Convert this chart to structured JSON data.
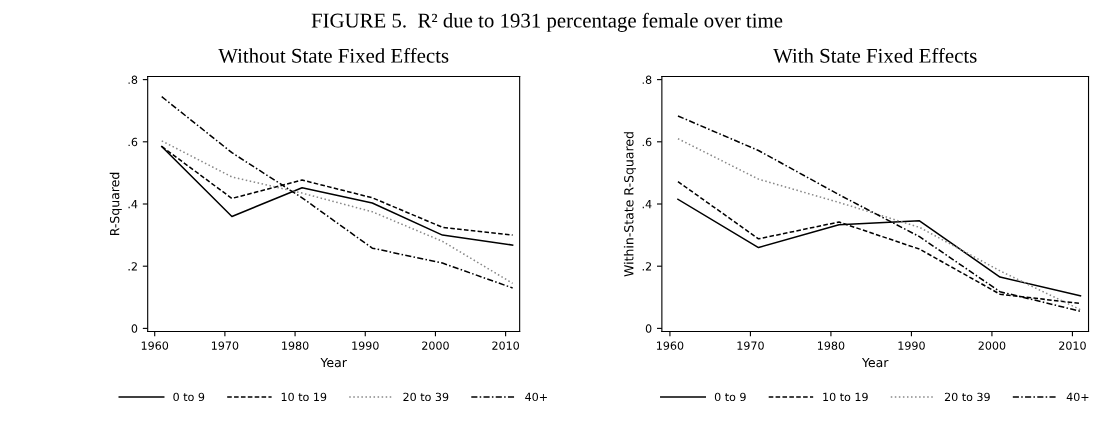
{
  "chart_data": [
    {
      "type": "line",
      "title": "Without State Fixed Effects",
      "annotations": [
        "FIGURE 5.  R² due to 1931 percentage female over time"
      ],
      "xlabel": "Year",
      "ylabel": "R-Squared",
      "x": [
        1961,
        1971,
        1981,
        1991,
        2001,
        2011
      ],
      "xlim": [
        1959,
        2012
      ],
      "xticks": [
        1960,
        1970,
        1980,
        1990,
        2000,
        2010
      ],
      "ylim": [
        -0.01,
        0.81
      ],
      "yticks": [
        {
          "value": 0,
          "label": "0"
        },
        {
          "value": 0.2,
          "label": ".2"
        },
        {
          "value": 0.4,
          "label": ".4"
        },
        {
          "value": 0.6,
          "label": ".6"
        },
        {
          "value": 0.8,
          "label": ".8"
        }
      ],
      "grid": false,
      "legend": "bottom",
      "series": [
        {
          "name": "0 to 9",
          "color": "#000000",
          "line_style": "solid",
          "values": [
            0.585,
            0.36,
            0.452,
            0.403,
            0.3,
            0.268
          ]
        },
        {
          "name": "10 to 19",
          "color": "#000000",
          "line_style": "dashed",
          "values": [
            0.585,
            0.418,
            0.477,
            0.42,
            0.325,
            0.3
          ]
        },
        {
          "name": "20 to 39",
          "color": "#888888",
          "line_style": "dotted",
          "values": [
            0.603,
            0.487,
            0.435,
            0.375,
            0.28,
            0.145
          ]
        },
        {
          "name": "40+",
          "color": "#000000",
          "line_style": "dashdot",
          "values": [
            0.745,
            0.565,
            0.42,
            0.258,
            0.21,
            0.13
          ]
        }
      ]
    },
    {
      "type": "line",
      "title": "With State Fixed Effects",
      "xlabel": "Year",
      "ylabel": "Within-State R-Squared",
      "x": [
        1961,
        1971,
        1981,
        1991,
        2001,
        2011
      ],
      "xlim": [
        1959,
        2012
      ],
      "xticks": [
        1960,
        1970,
        1980,
        1990,
        2000,
        2010
      ],
      "ylim": [
        -0.01,
        0.81
      ],
      "yticks": [
        {
          "value": 0,
          "label": "0"
        },
        {
          "value": 0.2,
          "label": ".2"
        },
        {
          "value": 0.4,
          "label": ".4"
        },
        {
          "value": 0.6,
          "label": ".6"
        },
        {
          "value": 0.8,
          "label": ".8"
        }
      ],
      "grid": false,
      "legend": "bottom",
      "series": [
        {
          "name": "0 to 9",
          "color": "#000000",
          "line_style": "solid",
          "values": [
            0.415,
            0.26,
            0.333,
            0.346,
            0.165,
            0.105
          ]
        },
        {
          "name": "10 to 19",
          "color": "#000000",
          "line_style": "dashed",
          "values": [
            0.472,
            0.288,
            0.342,
            0.255,
            0.11,
            0.08
          ]
        },
        {
          "name": "20 to 39",
          "color": "#888888",
          "line_style": "dotted",
          "values": [
            0.61,
            0.48,
            0.405,
            0.325,
            0.185,
            0.06
          ]
        },
        {
          "name": "40+",
          "color": "#000000",
          "line_style": "dashdot",
          "values": [
            0.683,
            0.572,
            0.43,
            0.295,
            0.118,
            0.055
          ]
        }
      ]
    }
  ]
}
